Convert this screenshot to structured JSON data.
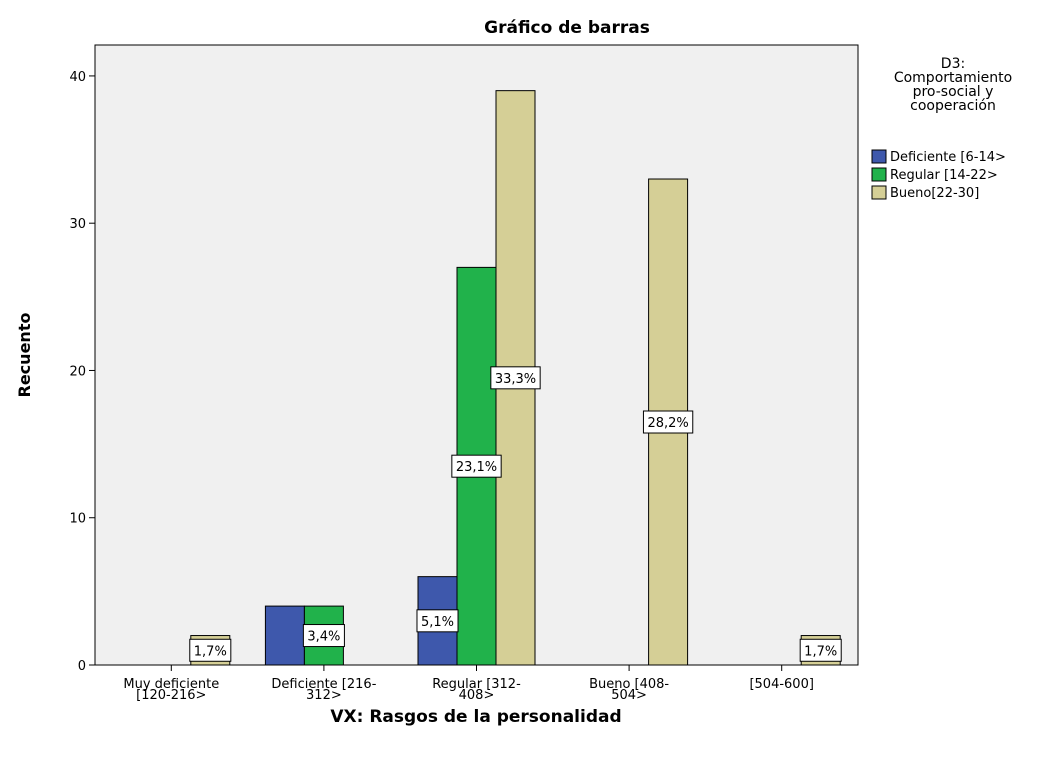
{
  "chart_data": {
    "type": "bar",
    "title": "Gráfico de barras",
    "x_label": "VX: Rasgos de la personalidad",
    "y_label": "Recuento",
    "legend_title": "D3:\nComportamiento\npro-social y\ncooperación",
    "categories": [
      "Muy deficiente\n[120-216>",
      "Deficiente [216-\n312>",
      "Regular [312-\n408>",
      "Bueno [408-\n504>",
      "[504-600]"
    ],
    "series": [
      {
        "name": "Deficiente [6-14>",
        "color": "#3e58ac",
        "values": [
          0,
          4,
          6,
          0,
          0
        ],
        "value_labels": [
          null,
          null,
          "5,1%",
          null,
          null
        ]
      },
      {
        "name": "Regular [14-22>",
        "color": "#21b24b",
        "values": [
          0,
          4,
          27,
          0,
          0
        ],
        "value_labels": [
          null,
          "3,4%",
          "23,1%",
          null,
          null
        ]
      },
      {
        "name": "Bueno[22-30]",
        "color": "#d5cf96",
        "values": [
          2,
          0,
          39,
          33,
          2
        ],
        "value_labels": [
          "1,7%",
          null,
          "33,3%",
          "28,2%",
          "1,7%"
        ]
      }
    ],
    "ylim": [
      0,
      42.1
    ],
    "yticks": [
      0,
      10,
      20,
      30,
      40
    ],
    "grid": false
  }
}
